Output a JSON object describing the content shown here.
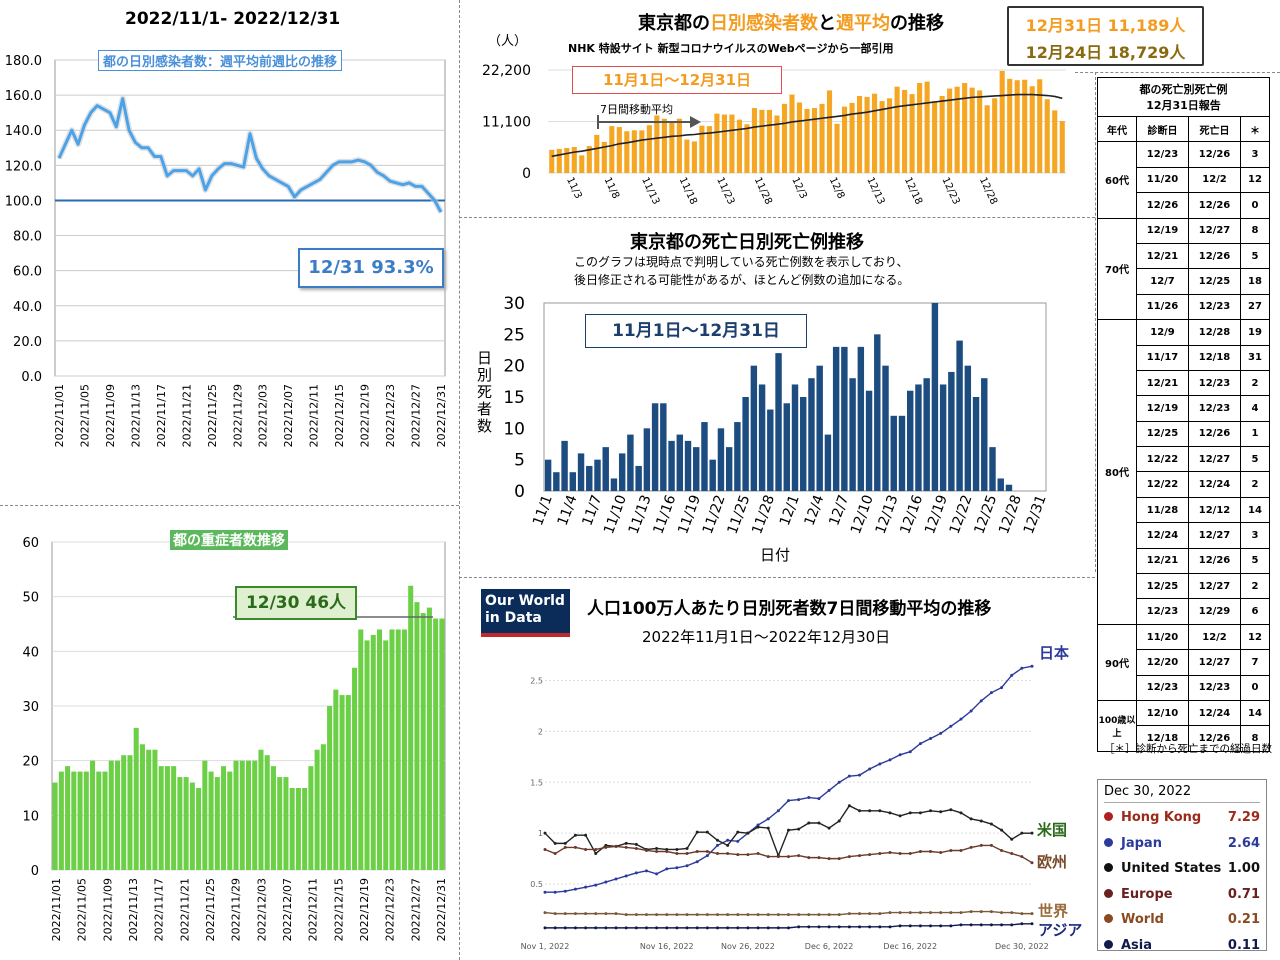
{
  "left": {
    "header": "2022/11/1- 2022/12/31",
    "ratio_chart": {
      "type": "line",
      "title": "都の日別感染者数：週平均前週比の推移",
      "callout": "12/31 93.3%",
      "y_ticks": [
        "180.0",
        "160.0",
        "140.0",
        "120.0",
        "100.0",
        "80.0",
        "60.0",
        "40.0",
        "20.0",
        "0.0"
      ],
      "ylim": [
        0,
        180
      ],
      "x_ticks": [
        "2022/11/01",
        "2022/11/05",
        "2022/11/09",
        "2022/11/13",
        "2022/11/17",
        "2022/11/21",
        "2022/11/25",
        "2022/11/29",
        "2022/12/03",
        "2022/12/07",
        "2022/12/11",
        "2022/12/15",
        "2022/12/19",
        "2022/12/23",
        "2022/12/27",
        "2022/12/31"
      ],
      "values": [
        124,
        132,
        140,
        132,
        143,
        150,
        154,
        152,
        150,
        142,
        158,
        140,
        133,
        130,
        130,
        125,
        125,
        114,
        117,
        117,
        117,
        114,
        118,
        106,
        114,
        118,
        121,
        121,
        120,
        119,
        138,
        124,
        118,
        114,
        112,
        110,
        108,
        102,
        106,
        108,
        110,
        112,
        116,
        120,
        122,
        122,
        122,
        123,
        122,
        120,
        116,
        114,
        111,
        110,
        109,
        110,
        108,
        108,
        104,
        100,
        93.3
      ],
      "reference": 100
    },
    "severe_chart": {
      "type": "bar",
      "title": "都の重症者数推移",
      "callout": "12/30 46人",
      "y_ticks": [
        "60",
        "50",
        "40",
        "30",
        "20",
        "10",
        "0"
      ],
      "ylim": [
        0,
        60
      ],
      "x_ticks": [
        "2022/11/01",
        "2022/11/05",
        "2022/11/09",
        "2022/11/13",
        "2022/11/17",
        "2022/11/21",
        "2022/11/25",
        "2022/11/29",
        "2022/12/03",
        "2022/12/07",
        "2022/12/11",
        "2022/12/15",
        "2022/12/19",
        "2022/12/23",
        "2022/12/27",
        "2022/12/31"
      ],
      "values": [
        16,
        18,
        19,
        18,
        18,
        18,
        20,
        18,
        18,
        20,
        20,
        21,
        21,
        26,
        23,
        22,
        22,
        19,
        19,
        19,
        17,
        17,
        16,
        15,
        20,
        18,
        17,
        19,
        18,
        20,
        20,
        20,
        20,
        22,
        21,
        19,
        17,
        17,
        15,
        15,
        15,
        19,
        22,
        23,
        30,
        33,
        32,
        32,
        37,
        44,
        42,
        43,
        44,
        42,
        44,
        44,
        44,
        52,
        49,
        47,
        48,
        46,
        46
      ]
    }
  },
  "top_center": {
    "title_parts": [
      "東京都の",
      "日別感染者数",
      "と",
      "週平均",
      "の推移"
    ],
    "subtitle": "NHK 特設サイト 新型コロナウイルスのWebページから一部引用",
    "unit": "（人）",
    "period": "11月1日〜12月31日",
    "ma_label": "7日間移動平均",
    "y_ticks": [
      "22,200",
      "11,100",
      "0"
    ],
    "summary": [
      "12月31日 11,189人",
      "12月24日 18,729人"
    ],
    "chart_data": {
      "type": "bar",
      "ylim": [
        0,
        22200
      ],
      "x_ticks": [
        "11/3",
        "11/8",
        "11/13",
        "11/18",
        "11/23",
        "11/28",
        "12/3",
        "12/8",
        "12/13",
        "12/18",
        "12/23",
        "12/28"
      ],
      "values": [
        5000,
        5200,
        5400,
        5600,
        3800,
        5800,
        8200,
        6700,
        10100,
        9900,
        9000,
        9200,
        9200,
        10300,
        12400,
        11700,
        10800,
        11700,
        7200,
        6800,
        10200,
        10100,
        12800,
        12600,
        12600,
        11500,
        10500,
        14000,
        13600,
        13600,
        12400,
        14900,
        16900,
        15200,
        13800,
        14000,
        14900,
        17800,
        10600,
        14300,
        15100,
        16600,
        16400,
        17100,
        15500,
        16100,
        18600,
        17900,
        17000,
        19400,
        19700,
        15500,
        16600,
        18200,
        18600,
        19400,
        18400,
        17800,
        14600,
        16100,
        22000,
        20300,
        20000,
        20100,
        18700,
        20200,
        15900,
        13500,
        11189
      ],
      "moving_average": [
        3600,
        3900,
        4200,
        4500,
        4700,
        5000,
        5300,
        5600,
        5900,
        6300,
        6500,
        6800,
        7100,
        7300,
        7500,
        7700,
        7900,
        8000,
        8200,
        8300,
        8500,
        8600,
        8800,
        9000,
        9200,
        9400,
        9600,
        9900,
        10100,
        10300,
        10500,
        10700,
        11000,
        11200,
        11400,
        11600,
        11800,
        12000,
        12200,
        12400,
        12700,
        12900,
        13100,
        13400,
        13700,
        14000,
        14300,
        14500,
        14700,
        14900,
        15100,
        15300,
        15500,
        15700,
        15900,
        16100,
        16300,
        16400,
        16500,
        16600,
        16700,
        16800,
        16900,
        16900,
        16900,
        16800,
        16700,
        16500,
        16100
      ]
    }
  },
  "deaths": {
    "title": "東京都の死亡日別死亡例推移",
    "note1": "このグラフは現時点で判明している死亡例数を表示しており、",
    "note2": "後日修正される可能性があるが、ほとんど例数の追加になる。",
    "period": "11月1日〜12月31日",
    "ylabel": "日別死者数",
    "xlabel": "日付",
    "chart_data": {
      "type": "bar",
      "ylim": [
        0,
        30
      ],
      "y_ticks": [
        "30",
        "25",
        "20",
        "15",
        "10",
        "5",
        "0"
      ],
      "x_ticks": [
        "11/1",
        "11/4",
        "11/7",
        "11/10",
        "11/13",
        "11/16",
        "11/19",
        "11/22",
        "11/25",
        "11/28",
        "12/1",
        "12/4",
        "12/7",
        "12/10",
        "12/13",
        "12/16",
        "12/19",
        "12/22",
        "12/25",
        "12/28",
        "12/31"
      ],
      "values": [
        5,
        3,
        8,
        3,
        6,
        4,
        5,
        7,
        2,
        6,
        9,
        4,
        10,
        14,
        14,
        8,
        9,
        8,
        7,
        11,
        5,
        10,
        7,
        11,
        15,
        20,
        17,
        13,
        22,
        14,
        17,
        15,
        18,
        20,
        9,
        23,
        23,
        18,
        23,
        16,
        25,
        20,
        12,
        12,
        16,
        17,
        18,
        30,
        17,
        19,
        24,
        20,
        15,
        18,
        7,
        2,
        1
      ]
    }
  },
  "owid": {
    "logo_line1": "Our World",
    "logo_line2": "in Data",
    "title": "人口100万人あたり日別死者数7日間移動平均の推移",
    "subtitle": "2022年11月1日〜2022年12月30日",
    "y_ticks": [
      "2.5",
      "2",
      "1.5",
      "1",
      "0.5"
    ],
    "x_ticks": [
      "Nov 1, 2022",
      "Nov 16, 2022",
      "Nov 26, 2022",
      "Dec 6, 2022",
      "Dec 16, 2022",
      "Dec 30, 2022"
    ],
    "labels": {
      "japan": "日本",
      "us": "米国",
      "europe": "欧州",
      "world": "世界",
      "asia": "アジア"
    },
    "chart_data": {
      "type": "line",
      "ylim": [
        0,
        2.75
      ],
      "series": [
        {
          "name": "Japan",
          "color": "#2b3a9b",
          "values": [
            0.42,
            0.42,
            0.43,
            0.45,
            0.47,
            0.49,
            0.52,
            0.55,
            0.58,
            0.61,
            0.63,
            0.6,
            0.65,
            0.66,
            0.68,
            0.72,
            0.78,
            0.88,
            0.93,
            0.92,
            1.0,
            1.08,
            1.14,
            1.22,
            1.32,
            1.33,
            1.35,
            1.34,
            1.42,
            1.5,
            1.56,
            1.57,
            1.63,
            1.68,
            1.72,
            1.77,
            1.8,
            1.88,
            1.93,
            1.98,
            2.05,
            2.12,
            2.2,
            2.3,
            2.38,
            2.43,
            2.55,
            2.62,
            2.64
          ]
        },
        {
          "name": "United States",
          "color": "#222222",
          "values": [
            1.0,
            0.9,
            0.9,
            0.98,
            0.98,
            0.8,
            0.88,
            0.87,
            0.9,
            0.89,
            0.84,
            0.85,
            0.84,
            0.84,
            0.85,
            1.01,
            1.01,
            0.93,
            0.88,
            1.01,
            1.0,
            1.06,
            1.05,
            0.78,
            1.03,
            1.04,
            1.1,
            1.1,
            1.05,
            1.12,
            1.27,
            1.22,
            1.22,
            1.22,
            1.2,
            1.17,
            1.2,
            1.2,
            1.22,
            1.21,
            1.23,
            1.2,
            1.14,
            1.12,
            1.09,
            1.03,
            0.94,
            1.0,
            1.0
          ]
        },
        {
          "name": "Europe",
          "color": "#6b3a2a",
          "values": [
            0.84,
            0.8,
            0.86,
            0.86,
            0.84,
            0.84,
            0.86,
            0.87,
            0.86,
            0.85,
            0.83,
            0.82,
            0.82,
            0.8,
            0.8,
            0.82,
            0.82,
            0.8,
            0.8,
            0.79,
            0.79,
            0.8,
            0.77,
            0.77,
            0.77,
            0.78,
            0.76,
            0.76,
            0.75,
            0.75,
            0.77,
            0.78,
            0.79,
            0.8,
            0.81,
            0.8,
            0.8,
            0.82,
            0.82,
            0.81,
            0.83,
            0.83,
            0.86,
            0.88,
            0.88,
            0.83,
            0.8,
            0.77,
            0.71
          ]
        },
        {
          "name": "World",
          "color": "#7a5a3a",
          "values": [
            0.22,
            0.21,
            0.21,
            0.21,
            0.21,
            0.21,
            0.21,
            0.21,
            0.2,
            0.2,
            0.2,
            0.2,
            0.2,
            0.2,
            0.2,
            0.2,
            0.2,
            0.2,
            0.2,
            0.2,
            0.2,
            0.2,
            0.2,
            0.2,
            0.2,
            0.2,
            0.2,
            0.2,
            0.2,
            0.2,
            0.21,
            0.21,
            0.21,
            0.21,
            0.22,
            0.22,
            0.22,
            0.22,
            0.22,
            0.22,
            0.22,
            0.22,
            0.23,
            0.23,
            0.23,
            0.22,
            0.22,
            0.21,
            0.21
          ]
        },
        {
          "name": "Asia",
          "color": "#111a4a",
          "values": [
            0.07,
            0.07,
            0.07,
            0.07,
            0.07,
            0.07,
            0.07,
            0.07,
            0.07,
            0.07,
            0.07,
            0.07,
            0.07,
            0.07,
            0.07,
            0.07,
            0.07,
            0.07,
            0.07,
            0.07,
            0.07,
            0.07,
            0.07,
            0.07,
            0.07,
            0.08,
            0.08,
            0.08,
            0.08,
            0.08,
            0.08,
            0.08,
            0.08,
            0.08,
            0.08,
            0.09,
            0.09,
            0.09,
            0.09,
            0.09,
            0.09,
            0.1,
            0.1,
            0.1,
            0.1,
            0.1,
            0.1,
            0.11,
            0.11
          ]
        }
      ]
    },
    "legend_date": "Dec 30, 2022",
    "legend": [
      {
        "name": "Hong Kong",
        "value": "7.29",
        "color": "#b02020",
        "text_color": "#9b2a1a"
      },
      {
        "name": "Japan",
        "value": "2.64",
        "color": "#2b3a9b",
        "text_color": "#2b3a9b"
      },
      {
        "name": "United States",
        "value": "1.00",
        "color": "#111111",
        "text_color": "#111111"
      },
      {
        "name": "Europe",
        "value": "0.71",
        "color": "#6b2020",
        "text_color": "#6b2020"
      },
      {
        "name": "World",
        "value": "0.21",
        "color": "#8a4a20",
        "text_color": "#8a4a20"
      },
      {
        "name": "Asia",
        "value": "0.11",
        "color": "#111a4a",
        "text_color": "#111a4a"
      }
    ]
  },
  "table": {
    "title1": "都の死亡別死亡例",
    "title2": "12月31日報告",
    "headers": [
      "年代",
      "診断日",
      "死亡日",
      "＊"
    ],
    "footnote": "［＊］診断から死亡までの経過日数",
    "groups": [
      {
        "age": "60代",
        "rows": [
          [
            "12/23",
            "12/26",
            "3"
          ],
          [
            "11/20",
            "12/2",
            "12"
          ],
          [
            "12/26",
            "12/26",
            "0"
          ]
        ]
      },
      {
        "age": "70代",
        "rows": [
          [
            "12/19",
            "12/27",
            "8"
          ],
          [
            "12/21",
            "12/26",
            "5"
          ],
          [
            "12/7",
            "12/25",
            "18"
          ],
          [
            "11/26",
            "12/23",
            "27"
          ]
        ]
      },
      {
        "age": "80代",
        "rows": [
          [
            "12/9",
            "12/28",
            "19"
          ],
          [
            "11/17",
            "12/18",
            "31"
          ],
          [
            "12/21",
            "12/23",
            "2"
          ],
          [
            "12/19",
            "12/23",
            "4"
          ],
          [
            "12/25",
            "12/26",
            "1"
          ],
          [
            "12/22",
            "12/27",
            "5"
          ],
          [
            "12/22",
            "12/24",
            "2"
          ],
          [
            "11/28",
            "12/12",
            "14"
          ],
          [
            "12/24",
            "12/27",
            "3"
          ],
          [
            "12/21",
            "12/26",
            "5"
          ],
          [
            "12/25",
            "12/27",
            "2"
          ],
          [
            "12/23",
            "12/29",
            "6"
          ]
        ]
      },
      {
        "age": "90代",
        "rows": [
          [
            "11/20",
            "12/2",
            "12"
          ],
          [
            "12/20",
            "12/27",
            "7"
          ],
          [
            "12/23",
            "12/23",
            "0"
          ]
        ]
      },
      {
        "age": "100歳以上",
        "rows": [
          [
            "12/10",
            "12/24",
            "14"
          ],
          [
            "12/18",
            "12/26",
            "8"
          ]
        ]
      }
    ]
  }
}
